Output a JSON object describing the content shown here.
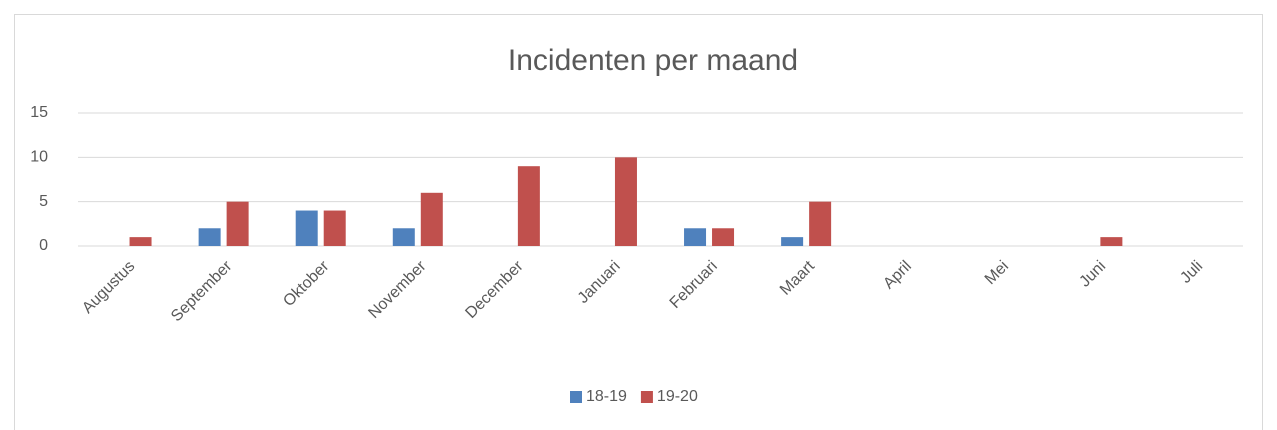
{
  "chart_data": {
    "type": "bar",
    "title": "Incidenten per maand",
    "categories": [
      "Augustus",
      "September",
      "Oktober",
      "November",
      "December",
      "Januari",
      "Februari",
      "Maart",
      "April",
      "Mei",
      "Juni",
      "Juli"
    ],
    "series": [
      {
        "name": "18-19",
        "color": "#4f81bd",
        "values": [
          0,
          2,
          4,
          2,
          0,
          0,
          2,
          1,
          0,
          0,
          0,
          0
        ]
      },
      {
        "name": "19-20",
        "color": "#c0504d",
        "values": [
          1,
          5,
          4,
          6,
          9,
          10,
          2,
          5,
          0,
          0,
          1,
          0
        ]
      }
    ],
    "ylim": [
      0,
      15
    ],
    "yticks": [
      0,
      5,
      10,
      15
    ],
    "grid": true,
    "legend": "bottom"
  }
}
